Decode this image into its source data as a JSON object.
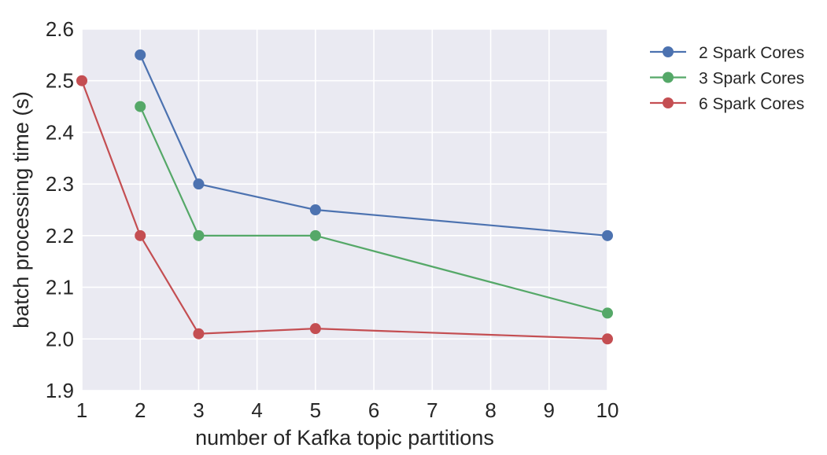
{
  "chart_data": {
    "type": "line",
    "title": "",
    "xlabel": "number of Kafka topic partitions",
    "ylabel": "batch processing time (s)",
    "xlim": [
      1,
      10
    ],
    "ylim": [
      1.9,
      2.6
    ],
    "xticks": [
      1,
      2,
      3,
      4,
      5,
      6,
      7,
      8,
      9,
      10
    ],
    "yticks": [
      1.9,
      2.0,
      2.1,
      2.2,
      2.3,
      2.4,
      2.5,
      2.6
    ],
    "ytick_labels": [
      "1.9",
      "2.0",
      "2.1",
      "2.2",
      "2.3",
      "2.4",
      "2.5",
      "2.6"
    ],
    "grid": true,
    "legend_position": "outside right, top",
    "plot_background": "#EAEAF2",
    "grid_color": "#FFFFFF",
    "series": [
      {
        "name": "2 Spark Cores",
        "color": "#4C72B0",
        "x": [
          2,
          3,
          5,
          10
        ],
        "y": [
          2.55,
          2.3,
          2.25,
          2.2
        ]
      },
      {
        "name": "3 Spark Cores",
        "color": "#55A868",
        "x": [
          2,
          3,
          5,
          10
        ],
        "y": [
          2.45,
          2.2,
          2.2,
          2.05
        ]
      },
      {
        "name": "6 Spark Cores",
        "color": "#C44E52",
        "x": [
          1,
          2,
          3,
          5,
          10
        ],
        "y": [
          2.5,
          2.2,
          2.01,
          2.02,
          2.0
        ]
      }
    ]
  }
}
